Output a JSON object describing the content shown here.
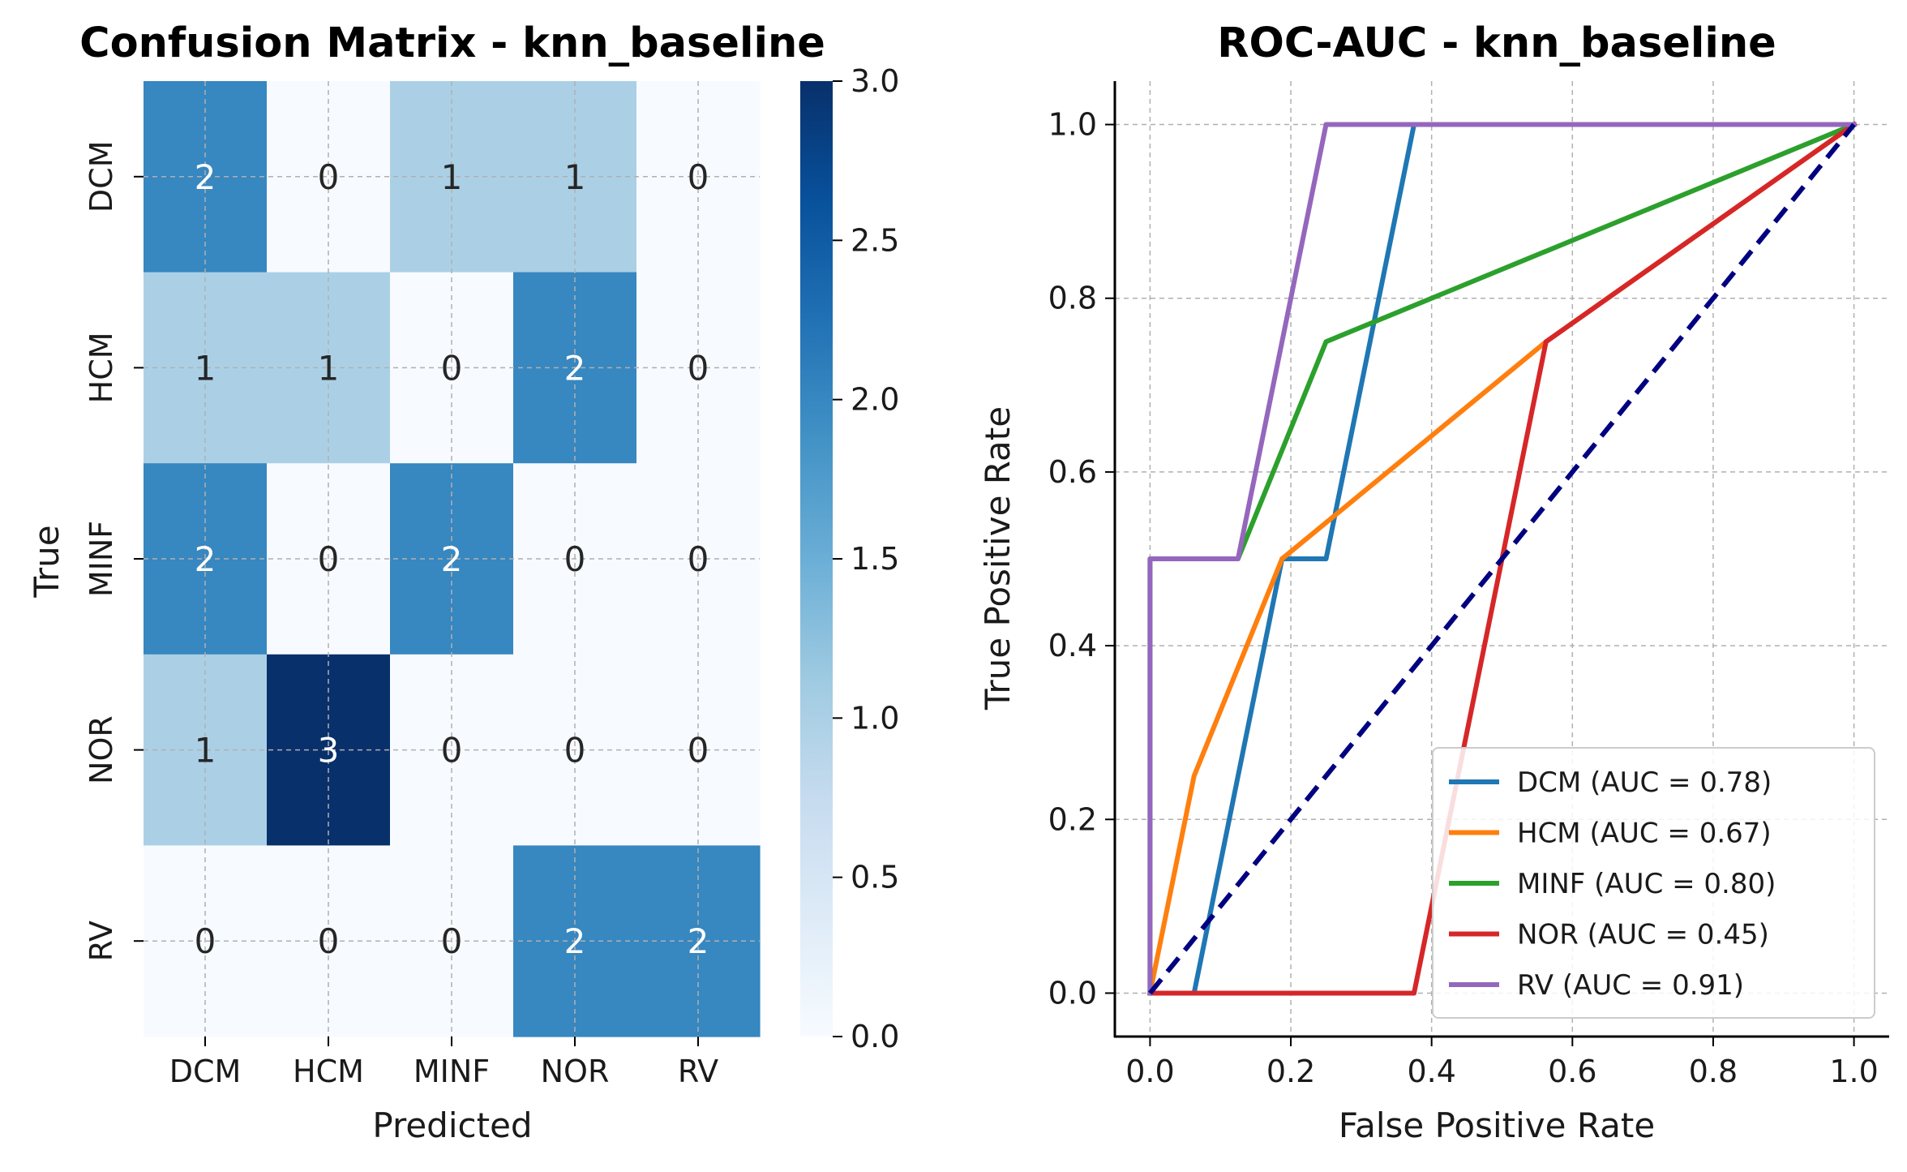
{
  "chart_data": [
    {
      "type": "heatmap",
      "title": "Confusion Matrix - knn_baseline",
      "xlabel": "Predicted",
      "ylabel": "True",
      "x_categories": [
        "DCM",
        "HCM",
        "MINF",
        "NOR",
        "RV"
      ],
      "y_categories": [
        "DCM",
        "HCM",
        "MINF",
        "NOR",
        "RV"
      ],
      "values": [
        [
          2,
          0,
          1,
          1,
          0
        ],
        [
          1,
          1,
          0,
          2,
          0
        ],
        [
          2,
          0,
          2,
          0,
          0
        ],
        [
          1,
          3,
          0,
          0,
          0
        ],
        [
          0,
          0,
          0,
          2,
          2
        ]
      ],
      "colormap": "Blues",
      "colorbar": {
        "range": [
          0,
          3
        ],
        "ticks": [
          0.0,
          0.5,
          1.0,
          1.5,
          2.0,
          2.5,
          3.0
        ],
        "tick_labels": [
          "0.0",
          "0.5",
          "1.0",
          "1.5",
          "2.0",
          "2.5",
          "3.0"
        ]
      },
      "grid": true
    },
    {
      "type": "line",
      "title": "ROC-AUC - knn_baseline",
      "xlabel": "False Positive Rate",
      "ylabel": "True Positive Rate",
      "xlim": [
        -0.05,
        1.05
      ],
      "ylim": [
        -0.05,
        1.05
      ],
      "x_ticks": [
        0.0,
        0.2,
        0.4,
        0.6,
        0.8,
        1.0
      ],
      "x_tick_labels": [
        "0.0",
        "0.2",
        "0.4",
        "0.6",
        "0.8",
        "1.0"
      ],
      "y_ticks": [
        0.0,
        0.2,
        0.4,
        0.6,
        0.8,
        1.0
      ],
      "y_tick_labels": [
        "0.0",
        "0.2",
        "0.4",
        "0.6",
        "0.8",
        "1.0"
      ],
      "grid": true,
      "legend_position": "lower-right",
      "series": [
        {
          "name": "DCM (AUC = 0.78)",
          "color": "#1f77b4",
          "x": [
            0.0,
            0.0625,
            0.1875,
            0.25,
            0.375,
            1.0
          ],
          "y": [
            0.0,
            0.0,
            0.5,
            0.5,
            1.0,
            1.0
          ]
        },
        {
          "name": "HCM (AUC = 0.67)",
          "color": "#ff7f0e",
          "x": [
            0.0,
            0.0625,
            0.1875,
            0.5625,
            1.0
          ],
          "y": [
            0.0,
            0.25,
            0.5,
            0.75,
            1.0
          ]
        },
        {
          "name": "MINF (AUC = 0.80)",
          "color": "#2ca02c",
          "x": [
            0.0,
            0.0,
            0.125,
            0.25,
            1.0
          ],
          "y": [
            0.0,
            0.5,
            0.5,
            0.75,
            1.0
          ]
        },
        {
          "name": "NOR (AUC = 0.45)",
          "color": "#d62728",
          "x": [
            0.0,
            0.375,
            0.5625,
            1.0
          ],
          "y": [
            0.0,
            0.0,
            0.75,
            1.0
          ]
        },
        {
          "name": "RV (AUC = 0.91)",
          "color": "#9467bd",
          "x": [
            0.0,
            0.0,
            0.125,
            0.25,
            1.0
          ],
          "y": [
            0.0,
            0.5,
            0.5,
            1.0,
            1.0
          ]
        }
      ],
      "reference_line": {
        "color": "#000080",
        "x": [
          0.0,
          1.0
        ],
        "y": [
          0.0,
          1.0
        ]
      }
    }
  ]
}
